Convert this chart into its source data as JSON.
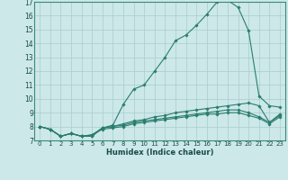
{
  "xlabel": "Humidex (Indice chaleur)",
  "xlim": [
    -0.5,
    23.5
  ],
  "ylim": [
    7,
    17
  ],
  "yticks": [
    7,
    8,
    9,
    10,
    11,
    12,
    13,
    14,
    15,
    16,
    17
  ],
  "xticks": [
    0,
    1,
    2,
    3,
    4,
    5,
    6,
    7,
    8,
    9,
    10,
    11,
    12,
    13,
    14,
    15,
    16,
    17,
    18,
    19,
    20,
    21,
    22,
    23
  ],
  "background_color": "#cce8e8",
  "line_color": "#2a7d6e",
  "grid_color": "#aacccc",
  "lines": [
    {
      "x": [
        0,
        1,
        2,
        3,
        4,
        5,
        6,
        7,
        8,
        9,
        10,
        11,
        12,
        13,
        14,
        15,
        16,
        17,
        18,
        19,
        20,
        21,
        22,
        23
      ],
      "y": [
        8.0,
        7.8,
        7.3,
        7.5,
        7.3,
        7.3,
        7.9,
        8.1,
        9.6,
        10.7,
        11.0,
        12.0,
        13.0,
        14.2,
        14.6,
        15.3,
        16.1,
        17.0,
        17.1,
        16.6,
        14.9,
        10.2,
        9.5,
        9.4
      ]
    },
    {
      "x": [
        0,
        1,
        2,
        3,
        4,
        5,
        6,
        7,
        8,
        9,
        10,
        11,
        12,
        13,
        14,
        15,
        16,
        17,
        18,
        19,
        20,
        21,
        22,
        23
      ],
      "y": [
        8.0,
        7.8,
        7.3,
        7.5,
        7.3,
        7.3,
        7.9,
        8.0,
        8.2,
        8.4,
        8.5,
        8.7,
        8.8,
        9.0,
        9.1,
        9.2,
        9.3,
        9.4,
        9.5,
        9.6,
        9.7,
        9.5,
        8.3,
        8.9
      ]
    },
    {
      "x": [
        0,
        1,
        2,
        3,
        4,
        5,
        6,
        7,
        8,
        9,
        10,
        11,
        12,
        13,
        14,
        15,
        16,
        17,
        18,
        19,
        20,
        21,
        22,
        23
      ],
      "y": [
        8.0,
        7.8,
        7.3,
        7.5,
        7.3,
        7.4,
        7.9,
        8.0,
        8.1,
        8.3,
        8.4,
        8.5,
        8.6,
        8.7,
        8.8,
        8.9,
        9.0,
        9.1,
        9.2,
        9.2,
        9.0,
        8.7,
        8.3,
        8.8
      ]
    },
    {
      "x": [
        0,
        1,
        2,
        3,
        4,
        5,
        6,
        7,
        8,
        9,
        10,
        11,
        12,
        13,
        14,
        15,
        16,
        17,
        18,
        19,
        20,
        21,
        22,
        23
      ],
      "y": [
        8.0,
        7.8,
        7.3,
        7.5,
        7.3,
        7.4,
        7.8,
        7.9,
        8.0,
        8.2,
        8.3,
        8.4,
        8.5,
        8.6,
        8.7,
        8.8,
        8.9,
        8.9,
        9.0,
        9.0,
        8.8,
        8.6,
        8.2,
        8.7
      ]
    }
  ]
}
